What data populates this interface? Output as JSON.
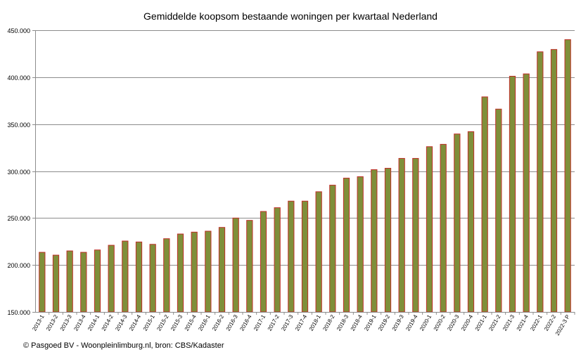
{
  "chart_data": {
    "type": "bar",
    "title": "Gemiddelde koopsom bestaande woningen per kwartaal Nederland",
    "xlabel": "",
    "ylabel": "",
    "ylim": [
      150000,
      450000
    ],
    "y_ticks": [
      150000,
      200000,
      250000,
      300000,
      350000,
      400000,
      450000
    ],
    "y_tick_labels": [
      "150.000",
      "200.000",
      "250.000",
      "300.000",
      "350.000",
      "400.000",
      "450.000"
    ],
    "grid": "horizontal",
    "legend": "none",
    "bar_fill": "#7F8F3A",
    "bar_stroke": "#C0302A",
    "categories": [
      "2013-1",
      "2013-2",
      "2013-3",
      "2013-4",
      "2014-1",
      "2014-2",
      "2014-3",
      "2014-4",
      "2015-1",
      "2015-2",
      "2015-3",
      "2015-4",
      "2016-1",
      "2016-2",
      "2016-3",
      "2016-4",
      "2017-1",
      "2017-2",
      "2017-3",
      "2017-4",
      "2018-1",
      "2018-2",
      "2018-3",
      "2018-4",
      "2019-1",
      "2019-2",
      "2019-3",
      "2019-4",
      "2020-1",
      "2020-2",
      "2020-3",
      "2020-4",
      "2021-1",
      "2021-2",
      "2021-3",
      "2021-4",
      "2022-1",
      "2022-2",
      "2022-3 P"
    ],
    "values": [
      213500,
      210500,
      215000,
      213500,
      216000,
      221000,
      225500,
      224500,
      222000,
      228000,
      233000,
      235000,
      236000,
      240000,
      250000,
      247500,
      257000,
      261000,
      268000,
      268000,
      278000,
      285000,
      292500,
      294000,
      301500,
      303000,
      313500,
      313500,
      326000,
      328500,
      339500,
      342000,
      379000,
      366000,
      401000,
      403500,
      427000,
      429500,
      440000
    ]
  },
  "footer": "© Pasgoed BV - Woonpleinlimburg.nl, bron: CBS/Kadaster"
}
